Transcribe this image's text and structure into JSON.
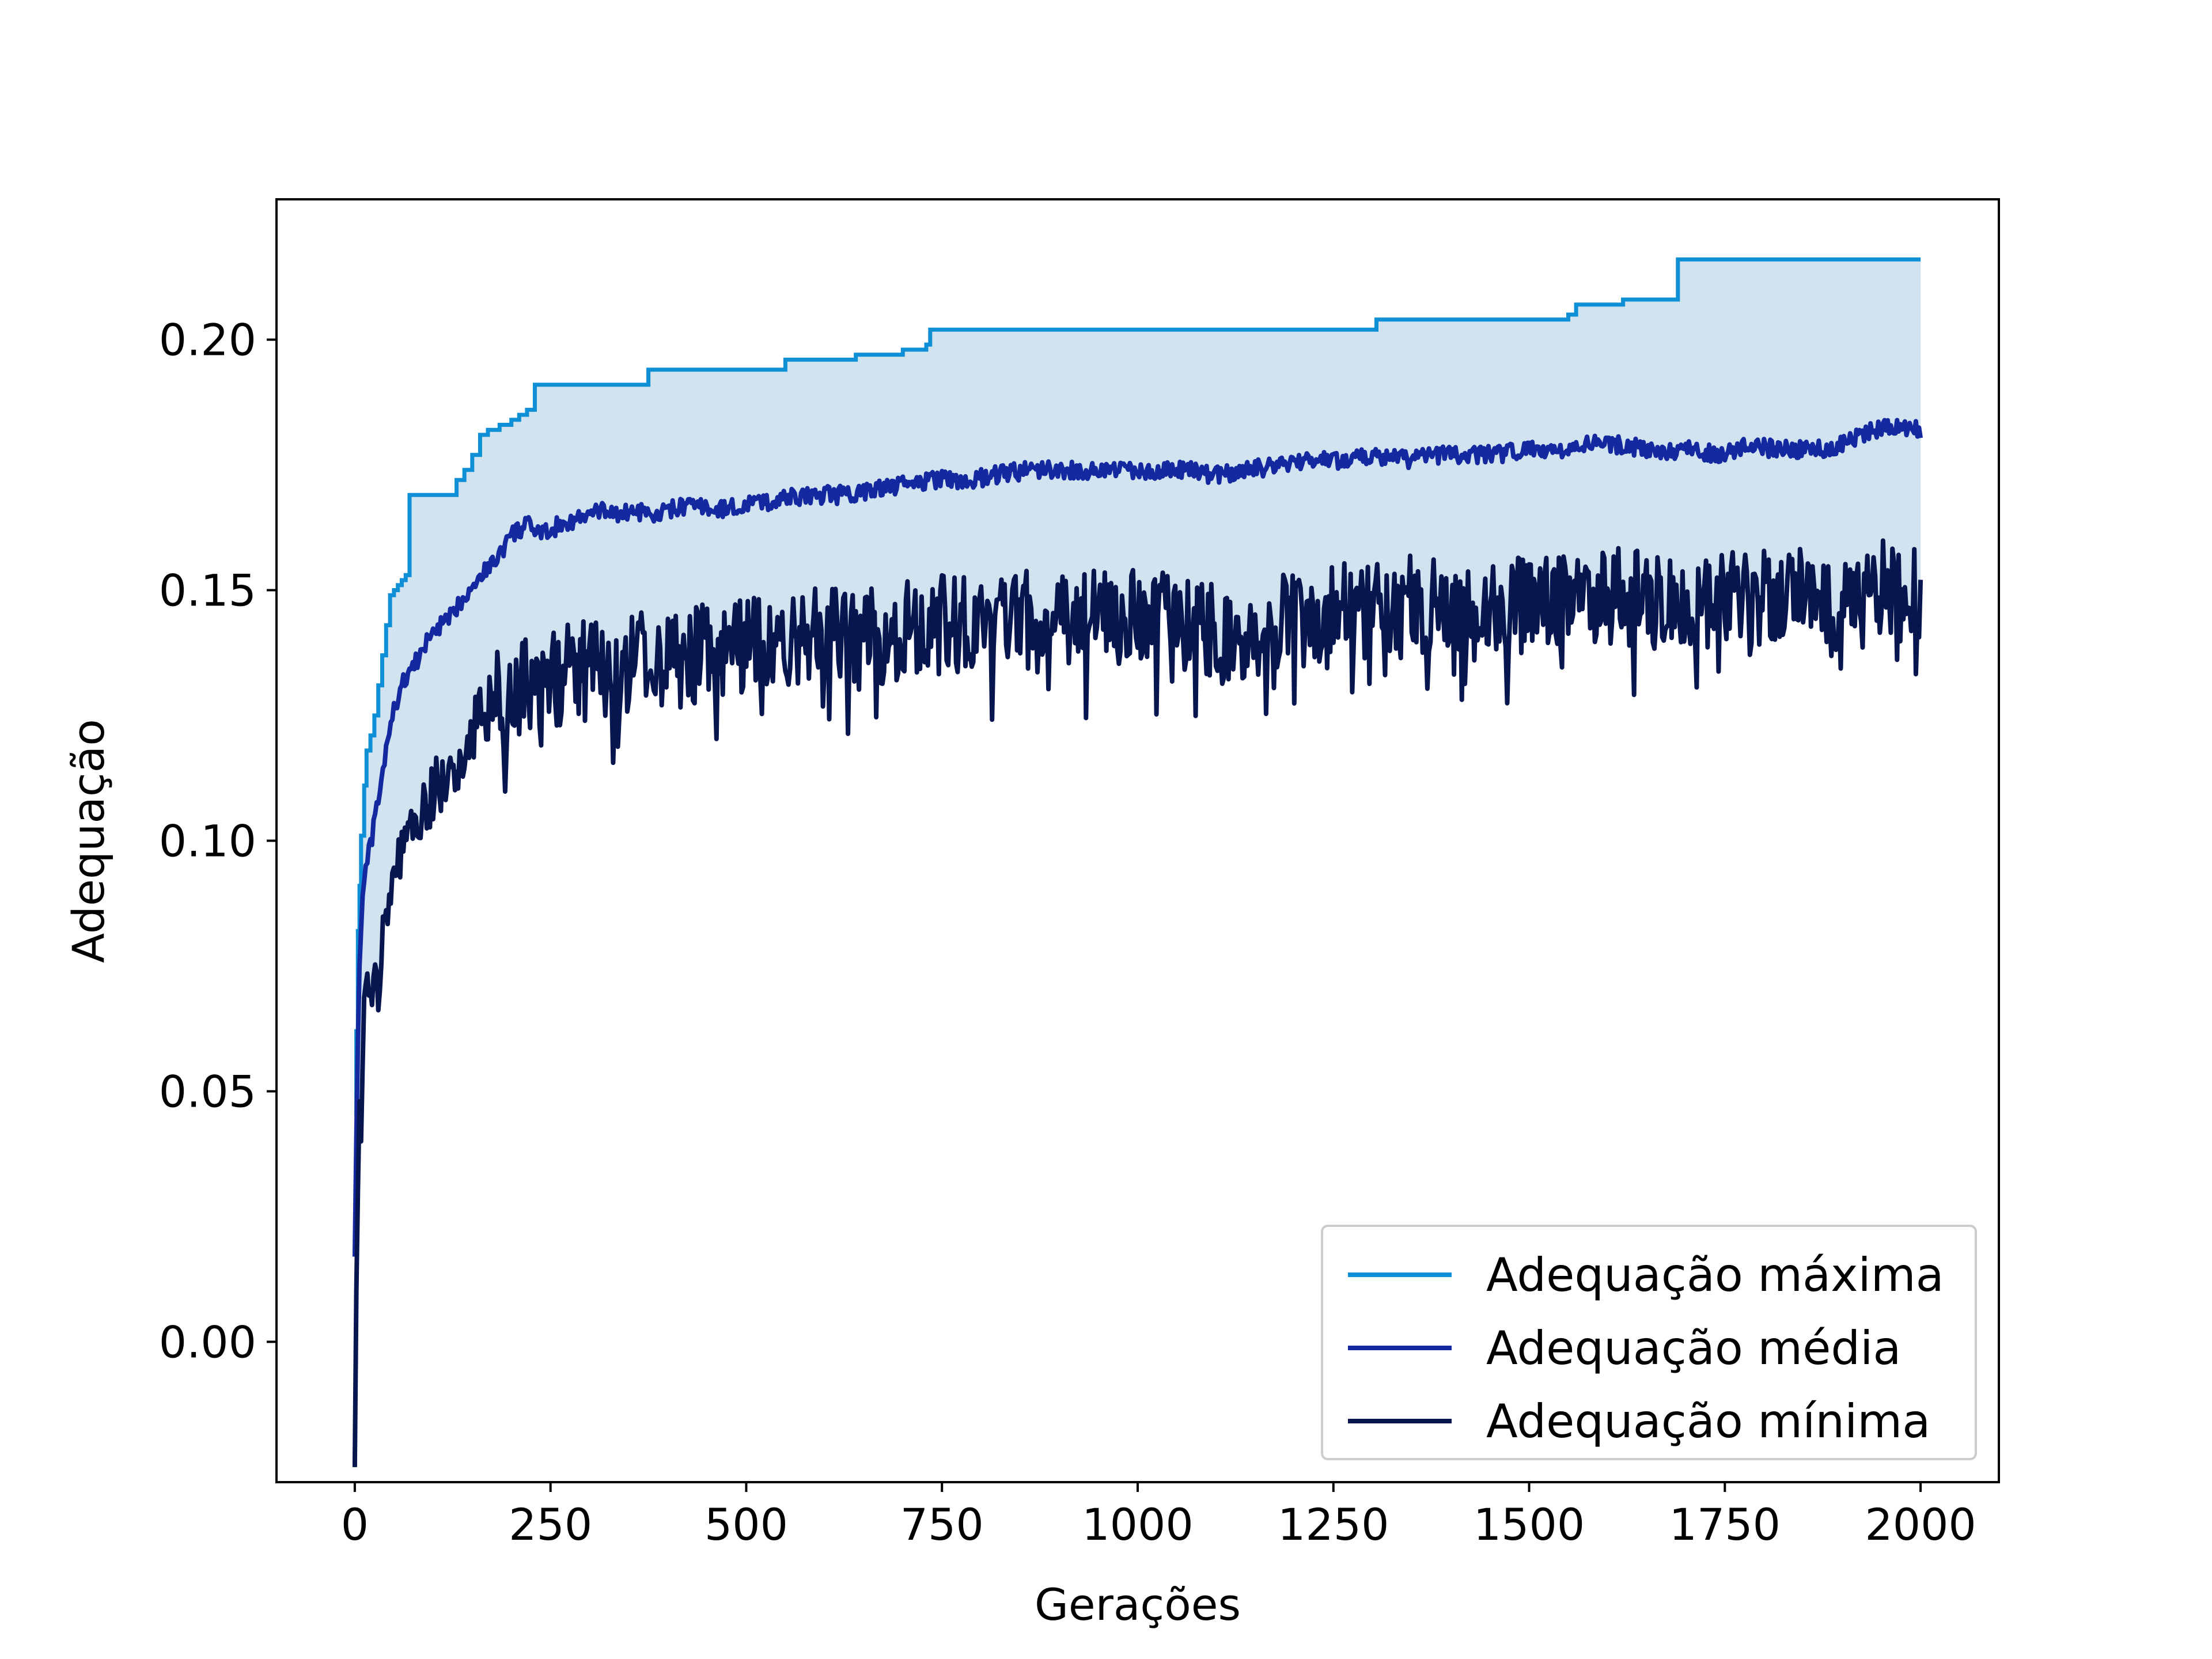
{
  "chart_data": {
    "type": "line",
    "xlabel": "Gerações",
    "ylabel": "Adequação",
    "xlim": [
      -100,
      2100
    ],
    "ylim": [
      -0.028,
      0.228
    ],
    "xticks": [
      0,
      250,
      500,
      750,
      1000,
      1250,
      1500,
      1750,
      2000
    ],
    "xtick_labels": [
      "0",
      "250",
      "500",
      "750",
      "1000",
      "1250",
      "1500",
      "1750",
      "2000"
    ],
    "yticks": [
      0.0,
      0.05,
      0.1,
      0.15,
      0.2
    ],
    "ytick_labels": [
      "0.00",
      "0.05",
      "0.10",
      "0.15",
      "0.20"
    ],
    "grid": false,
    "legend_position": "lower-right",
    "fill_between": {
      "lower": "Adequação mínima",
      "upper": "Adequação máxima",
      "color": "#d2e3f0"
    },
    "series": [
      {
        "name": "Adequação máxima",
        "color": "#0f8fd6",
        "step": true,
        "x": [
          0,
          2,
          4,
          6,
          8,
          12,
          15,
          20,
          25,
          30,
          35,
          40,
          45,
          50,
          55,
          60,
          65,
          70,
          75,
          130,
          140,
          150,
          160,
          170,
          185,
          200,
          210,
          220,
          230,
          375,
          550,
          640,
          700,
          730,
          735,
          1300,
          1305,
          1550,
          1560,
          1620,
          1690,
          2000
        ],
        "y": [
          0.045,
          0.062,
          0.082,
          0.091,
          0.101,
          0.111,
          0.118,
          0.121,
          0.125,
          0.131,
          0.137,
          0.143,
          0.149,
          0.15,
          0.151,
          0.152,
          0.153,
          0.169,
          0.169,
          0.172,
          0.174,
          0.177,
          0.181,
          0.182,
          0.183,
          0.184,
          0.185,
          0.186,
          0.191,
          0.194,
          0.196,
          0.197,
          0.198,
          0.199,
          0.202,
          0.202,
          0.204,
          0.205,
          0.207,
          0.208,
          0.216,
          0.216
        ]
      },
      {
        "name": "Adequação média",
        "color": "#1429a0",
        "x": [
          0,
          3,
          6,
          10,
          15,
          20,
          30,
          40,
          50,
          60,
          70,
          80,
          90,
          100,
          120,
          140,
          160,
          180,
          200,
          220,
          240,
          260,
          280,
          300,
          320,
          340,
          360,
          380,
          400,
          430,
          460,
          500,
          540,
          580,
          620,
          660,
          700,
          740,
          780,
          820,
          860,
          900,
          940,
          980,
          1020,
          1060,
          1100,
          1140,
          1180,
          1220,
          1260,
          1300,
          1340,
          1380,
          1420,
          1460,
          1500,
          1540,
          1580,
          1620,
          1660,
          1700,
          1740,
          1780,
          1820,
          1860,
          1900,
          1940,
          1970,
          2000
        ],
        "y": [
          0.017,
          0.052,
          0.075,
          0.089,
          0.095,
          0.099,
          0.108,
          0.118,
          0.126,
          0.131,
          0.134,
          0.136,
          0.139,
          0.142,
          0.144,
          0.149,
          0.153,
          0.156,
          0.161,
          0.163,
          0.161,
          0.163,
          0.164,
          0.165,
          0.166,
          0.165,
          0.166,
          0.164,
          0.166,
          0.167,
          0.166,
          0.167,
          0.168,
          0.169,
          0.169,
          0.17,
          0.171,
          0.172,
          0.172,
          0.173,
          0.174,
          0.174,
          0.174,
          0.174,
          0.174,
          0.174,
          0.173,
          0.174,
          0.175,
          0.176,
          0.176,
          0.177,
          0.176,
          0.177,
          0.177,
          0.177,
          0.178,
          0.178,
          0.179,
          0.179,
          0.178,
          0.178,
          0.177,
          0.179,
          0.178,
          0.178,
          0.179,
          0.182,
          0.183,
          0.182
        ]
      },
      {
        "name": "Adequação mínima",
        "color": "#08164f",
        "x": [
          0,
          2,
          4,
          6,
          8,
          10,
          12,
          15,
          18,
          20,
          25,
          30,
          35,
          40,
          50,
          60,
          70,
          80,
          90,
          100,
          120,
          140,
          160,
          180,
          200,
          230,
          260,
          300,
          340,
          380,
          420,
          460,
          500,
          550,
          600,
          650,
          700,
          750,
          800,
          850,
          900,
          950,
          1000,
          1050,
          1100,
          1150,
          1200,
          1250,
          1300,
          1350,
          1400,
          1450,
          1500,
          1550,
          1600,
          1650,
          1700,
          1750,
          1800,
          1850,
          1900,
          1950,
          2000
        ],
        "y": [
          -0.025,
          0.01,
          0.03,
          0.048,
          0.04,
          0.055,
          0.065,
          0.07,
          0.064,
          0.07,
          0.075,
          0.072,
          0.081,
          0.087,
          0.093,
          0.097,
          0.102,
          0.104,
          0.106,
          0.11,
          0.113,
          0.117,
          0.126,
          0.128,
          0.129,
          0.131,
          0.133,
          0.134,
          0.135,
          0.137,
          0.136,
          0.138,
          0.139,
          0.14,
          0.141,
          0.14,
          0.142,
          0.143,
          0.143,
          0.144,
          0.143,
          0.144,
          0.145,
          0.144,
          0.141,
          0.143,
          0.144,
          0.146,
          0.145,
          0.147,
          0.147,
          0.148,
          0.146,
          0.148,
          0.149,
          0.148,
          0.149,
          0.148,
          0.148,
          0.149,
          0.147,
          0.15,
          0.149
        ]
      }
    ]
  }
}
